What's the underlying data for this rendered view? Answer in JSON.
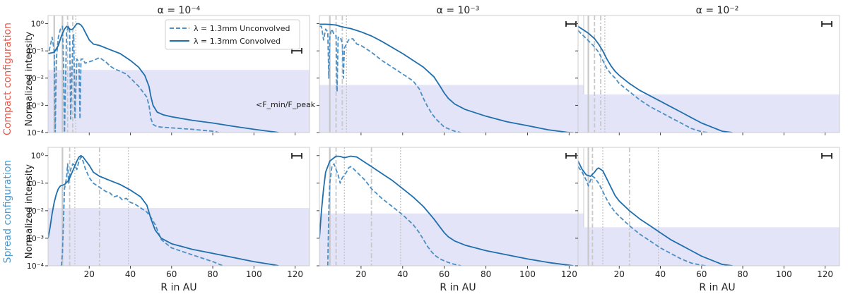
{
  "chart_data": {
    "type": "line",
    "legend": [
      {
        "label": "λ = 1.3mm Unconvolved",
        "style": "dashed"
      },
      {
        "label": "λ = 1.3mm Convolved",
        "style": "solid"
      }
    ],
    "legend_position": "top-right of first panel",
    "xlabel": "R in AU",
    "ylabel": "Normalized intensity",
    "xlim": [
      0,
      127
    ],
    "ylim_log10": [
      -4,
      0.3
    ],
    "x_ticks": [
      20,
      40,
      60,
      80,
      100,
      120
    ],
    "y_ticks_log10": [
      0,
      -1,
      -2,
      -3,
      -4
    ],
    "y_tick_labels": [
      "10⁰",
      "10⁻¹",
      "10⁻²",
      "10⁻³",
      "10⁻⁴"
    ],
    "column_titles": [
      "α = 10⁻⁴",
      "α = 10⁻³",
      "α = 10⁻²"
    ],
    "row_labels": [
      "Compact configuration",
      "Spread configuration"
    ],
    "row_label_colors": [
      "#e8584a",
      "#4a9bd1"
    ],
    "colors": {
      "line": "#1f6fad",
      "dashed": "#4c8fc4",
      "band": "#e4e4f8",
      "vline": "#c8c8c8"
    },
    "annotation": "<F_min/F_peak",
    "panels": [
      {
        "row": 0,
        "col": 0,
        "band_top_log10": -1.7,
        "vlines": {
          "solid": [
            3,
            7
          ],
          "dashed": [
            9.5,
            12
          ],
          "dotted": [
            13.5
          ]
        },
        "convolved": {
          "x": [
            0,
            3,
            5,
            6.5,
            8,
            9,
            10,
            11,
            12,
            13,
            14,
            15,
            16,
            17,
            18,
            20,
            22,
            25,
            30,
            35,
            40,
            44,
            47,
            49,
            50,
            51,
            53,
            56,
            60,
            70,
            80,
            90,
            100,
            110,
            112
          ],
          "y": [
            -1.1,
            -1.05,
            -0.8,
            -0.45,
            -0.2,
            -0.1,
            -0.15,
            -0.22,
            -0.2,
            -0.1,
            0,
            0,
            -0.05,
            -0.15,
            -0.3,
            -0.6,
            -0.75,
            -0.8,
            -0.95,
            -1.1,
            -1.35,
            -1.6,
            -1.9,
            -2.3,
            -2.7,
            -3.0,
            -3.25,
            -3.35,
            -3.42,
            -3.55,
            -3.65,
            -3.77,
            -3.88,
            -3.98,
            -4.0
          ]
        },
        "unconvolved": {
          "x": [
            0.5,
            2,
            3,
            3.5,
            4,
            5,
            6,
            7,
            7.5,
            8,
            9,
            10,
            10.5,
            11,
            12,
            12.5,
            13,
            14,
            15,
            15.5,
            16,
            17,
            18,
            20,
            22,
            25,
            28,
            30,
            32,
            35,
            38,
            40,
            42,
            44,
            46,
            48,
            49,
            50,
            51,
            52,
            53,
            55,
            60,
            70,
            80,
            83
          ],
          "y": [
            -1.0,
            -0.5,
            -1.0,
            -4.0,
            -1.3,
            -0.5,
            -0.2,
            -0.1,
            -1.5,
            -4.0,
            -0.3,
            -0.1,
            -0.3,
            -3.5,
            -0.6,
            -0.4,
            -3.5,
            -1.3,
            -1.4,
            -3.5,
            -1.3,
            -1.3,
            -1.45,
            -1.4,
            -1.35,
            -1.25,
            -1.4,
            -1.55,
            -1.65,
            -1.75,
            -1.85,
            -2.0,
            -2.15,
            -2.3,
            -2.5,
            -2.7,
            -3.0,
            -3.5,
            -3.7,
            -3.75,
            -3.78,
            -3.8,
            -3.83,
            -3.88,
            -3.95,
            -4.0
          ]
        }
      },
      {
        "row": 0,
        "col": 1,
        "band_top_log10": -2.25,
        "vlines": {
          "solid": [
            5
          ],
          "dashed": [
            8
          ],
          "dashdot": [
            11
          ],
          "dotted": [
            13
          ]
        },
        "convolved": {
          "x": [
            0,
            3,
            5,
            8,
            10,
            13,
            15,
            20,
            25,
            30,
            40,
            50,
            55,
            58,
            60,
            62,
            65,
            70,
            80,
            90,
            100,
            110,
            120,
            122
          ],
          "y": [
            -0.02,
            -0.02,
            -0.03,
            -0.05,
            -0.1,
            -0.15,
            -0.18,
            -0.3,
            -0.45,
            -0.65,
            -1.1,
            -1.6,
            -1.95,
            -2.3,
            -2.55,
            -2.75,
            -2.95,
            -3.15,
            -3.4,
            -3.6,
            -3.75,
            -3.9,
            -4.0,
            -4.0
          ]
        },
        "unconvolved": {
          "x": [
            0,
            1,
            2,
            3,
            4,
            4.5,
            5,
            5.5,
            6,
            7,
            8,
            8.5,
            9,
            10,
            11,
            11.5,
            12,
            14,
            16,
            18,
            20,
            25,
            30,
            35,
            40,
            45,
            48,
            50,
            52,
            54,
            56,
            58,
            60,
            65,
            68
          ],
          "y": [
            -0.1,
            -0.1,
            -0.6,
            -0.2,
            -0.3,
            -2.0,
            -0.5,
            -0.3,
            -0.2,
            -0.4,
            -0.45,
            -2.5,
            -0.5,
            -0.5,
            -0.7,
            -2.0,
            -0.9,
            -0.6,
            -0.55,
            -0.75,
            -0.8,
            -1.05,
            -1.35,
            -1.6,
            -1.85,
            -2.1,
            -2.4,
            -2.75,
            -3.05,
            -3.3,
            -3.5,
            -3.65,
            -3.8,
            -3.95,
            -4.0
          ]
        }
      },
      {
        "row": 0,
        "col": 2,
        "band_top_log10": -2.6,
        "vlines": {
          "solid": [
            5
          ],
          "dashed": [
            8
          ],
          "dashdot": [
            11
          ],
          "dotted": [
            13
          ]
        },
        "convolved": {
          "x": [
            0,
            2,
            5,
            8,
            10,
            12,
            14,
            16,
            18,
            20,
            25,
            30,
            35,
            40,
            45,
            50,
            55,
            60,
            65,
            70,
            75
          ],
          "y": [
            -0.1,
            -0.2,
            -0.35,
            -0.55,
            -0.75,
            -1.0,
            -1.3,
            -1.55,
            -1.75,
            -1.9,
            -2.2,
            -2.45,
            -2.65,
            -2.85,
            -3.05,
            -3.25,
            -3.45,
            -3.65,
            -3.8,
            -3.95,
            -4.0
          ]
        },
        "unconvolved": {
          "x": [
            0,
            2,
            4,
            6,
            8,
            10,
            12,
            14,
            16,
            18,
            20,
            25,
            30,
            35,
            40,
            45,
            50,
            55,
            60,
            63
          ],
          "y": [
            -0.25,
            -0.4,
            -0.55,
            -0.7,
            -0.85,
            -1.05,
            -1.35,
            -1.65,
            -1.85,
            -2.0,
            -2.2,
            -2.5,
            -2.8,
            -3.05,
            -3.25,
            -3.45,
            -3.65,
            -3.85,
            -3.97,
            -4.0
          ]
        }
      },
      {
        "row": 1,
        "col": 0,
        "band_top_log10": -1.9,
        "vlines": {
          "solid": [
            7
          ],
          "dashed": [
            10.5
          ],
          "dotted": [
            13
          ],
          "dashdot": [
            25
          ],
          "dotted2": [
            39
          ]
        },
        "convolved": {
          "x": [
            0,
            1,
            2,
            3,
            4,
            5,
            6,
            8,
            10,
            12,
            14,
            15,
            16,
            17,
            18,
            20,
            22,
            25,
            30,
            35,
            40,
            45,
            48,
            50,
            52,
            55,
            60,
            70,
            80,
            90,
            100,
            110,
            112
          ],
          "y": [
            -3.0,
            -2.6,
            -2.1,
            -1.7,
            -1.4,
            -1.2,
            -1.1,
            -1.05,
            -0.9,
            -0.55,
            -0.2,
            -0.05,
            0,
            -0.05,
            -0.15,
            -0.35,
            -0.6,
            -0.75,
            -0.9,
            -1.05,
            -1.25,
            -1.5,
            -1.8,
            -2.3,
            -2.7,
            -3.0,
            -3.2,
            -3.4,
            -3.55,
            -3.7,
            -3.85,
            -3.97,
            -4.0
          ]
        },
        "unconvolved": {
          "x": [
            6.5,
            7,
            8,
            9,
            9.5,
            10,
            11,
            12,
            13,
            14,
            15,
            16,
            17,
            18,
            20,
            22,
            24,
            26,
            28,
            30,
            32,
            34,
            36,
            38,
            40,
            42,
            44,
            46,
            48,
            50,
            52,
            55,
            60,
            70,
            80,
            85
          ],
          "y": [
            -4.0,
            -3.5,
            -1.2,
            -0.8,
            -0.3,
            -1.0,
            -0.5,
            -0.3,
            -0.35,
            -0.5,
            -0.2,
            -0.05,
            -0.2,
            -0.45,
            -0.8,
            -1.0,
            -1.1,
            -1.2,
            -1.3,
            -1.35,
            -1.5,
            -1.45,
            -1.6,
            -1.55,
            -1.7,
            -1.75,
            -1.85,
            -1.95,
            -2.05,
            -2.25,
            -2.5,
            -3.05,
            -3.35,
            -3.6,
            -3.85,
            -4.0
          ]
        }
      },
      {
        "row": 1,
        "col": 1,
        "band_top_log10": -2.1,
        "vlines": {
          "solid": [
            5
          ],
          "dashed": [
            8
          ],
          "dotted": [
            12
          ],
          "dashdot": [
            25
          ],
          "dotted2": [
            39
          ]
        },
        "convolved": {
          "x": [
            0,
            1,
            2,
            3,
            5,
            8,
            10,
            12,
            15,
            18,
            20,
            25,
            30,
            35,
            40,
            45,
            50,
            55,
            58,
            60,
            62,
            65,
            70,
            80,
            90,
            100,
            110,
            120,
            122
          ],
          "y": [
            -3.0,
            -2.0,
            -1.2,
            -0.6,
            -0.2,
            -0.02,
            -0.03,
            -0.08,
            -0.02,
            -0.05,
            -0.15,
            -0.4,
            -0.65,
            -0.9,
            -1.2,
            -1.5,
            -1.85,
            -2.3,
            -2.6,
            -2.8,
            -2.95,
            -3.1,
            -3.25,
            -3.45,
            -3.6,
            -3.75,
            -3.88,
            -3.98,
            -4.0
          ]
        },
        "unconvolved": {
          "x": [
            4,
            4.5,
            5,
            6,
            7,
            8,
            9,
            10,
            11,
            12,
            13,
            14,
            15,
            16,
            18,
            20,
            22,
            25,
            30,
            35,
            40,
            45,
            48,
            50,
            52,
            54,
            56,
            58,
            60,
            62,
            64,
            68
          ],
          "y": [
            -4.0,
            -2.0,
            -1.0,
            -0.4,
            -0.3,
            -0.5,
            -0.7,
            -1.0,
            -0.8,
            -0.7,
            -0.6,
            -0.45,
            -0.4,
            -0.45,
            -0.6,
            -0.75,
            -0.9,
            -1.2,
            -1.55,
            -1.85,
            -2.15,
            -2.5,
            -2.8,
            -3.05,
            -3.3,
            -3.5,
            -3.65,
            -3.75,
            -3.82,
            -3.88,
            -3.93,
            -4.0
          ]
        }
      },
      {
        "row": 1,
        "col": 2,
        "band_top_log10": -2.6,
        "vlines": {
          "solid": [
            5
          ],
          "dashed": [
            7
          ],
          "dotted": [
            12
          ],
          "dashdot": [
            25
          ],
          "dotted2": [
            39
          ]
        },
        "convolved": {
          "x": [
            0,
            2,
            4,
            6,
            8,
            9,
            10,
            12,
            14,
            16,
            18,
            20,
            25,
            30,
            35,
            40,
            45,
            50,
            55,
            60,
            65,
            70,
            75
          ],
          "y": [
            -0.2,
            -0.5,
            -0.7,
            -0.75,
            -0.6,
            -0.5,
            -0.45,
            -0.55,
            -0.85,
            -1.15,
            -1.45,
            -1.65,
            -2.0,
            -2.3,
            -2.55,
            -2.8,
            -3.05,
            -3.25,
            -3.45,
            -3.65,
            -3.8,
            -3.95,
            -4.0
          ]
        },
        "unconvolved": {
          "x": [
            0,
            2,
            4,
            5,
            6,
            7,
            8,
            10,
            12,
            14,
            16,
            18,
            20,
            25,
            30,
            35,
            40,
            45,
            50,
            55,
            60,
            62
          ],
          "y": [
            -0.4,
            -0.6,
            -0.9,
            -1.1,
            -0.9,
            -0.75,
            -0.8,
            -1.0,
            -1.3,
            -1.6,
            -1.85,
            -2.05,
            -2.2,
            -2.55,
            -2.85,
            -3.1,
            -3.35,
            -3.55,
            -3.75,
            -3.9,
            -3.98,
            -4.0
          ]
        }
      }
    ]
  }
}
